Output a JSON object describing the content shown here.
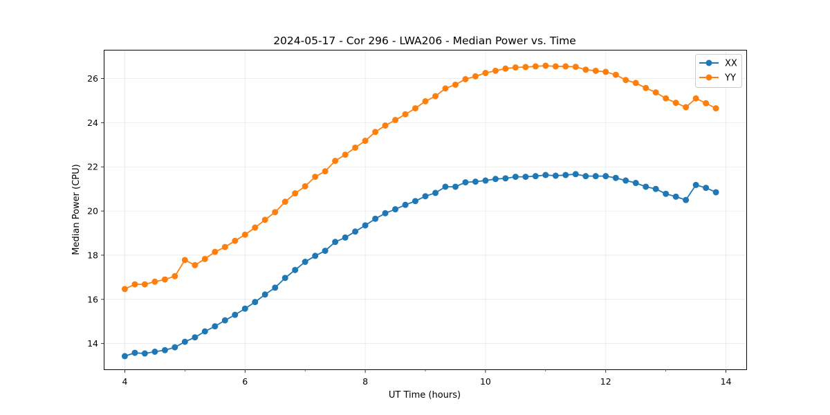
{
  "chart_data": {
    "type": "line",
    "title": "2024-05-17 - Cor 296 - LWA206 - Median Power vs. Time",
    "xlabel": "UT Time (hours)",
    "ylabel": "Median Power (CPU)",
    "xlim": [
      3.65,
      14.35
    ],
    "ylim": [
      12.8,
      27.3
    ],
    "xticks": [
      4,
      6,
      8,
      10,
      12,
      14
    ],
    "yticks": [
      14,
      16,
      18,
      20,
      22,
      24,
      26
    ],
    "grid": true,
    "legend_position": "top-right",
    "series": [
      {
        "name": "XX",
        "color": "#1f77b4",
        "x": [
          4.0,
          4.167,
          4.333,
          4.5,
          4.667,
          4.833,
          5.0,
          5.167,
          5.333,
          5.5,
          5.667,
          5.833,
          6.0,
          6.167,
          6.333,
          6.5,
          6.667,
          6.833,
          7.0,
          7.167,
          7.333,
          7.5,
          7.667,
          7.833,
          8.0,
          8.167,
          8.333,
          8.5,
          8.667,
          8.833,
          9.0,
          9.167,
          9.333,
          9.5,
          9.667,
          9.833,
          10.0,
          10.167,
          10.333,
          10.5,
          10.667,
          10.833,
          11.0,
          11.167,
          11.333,
          11.5,
          11.667,
          11.833,
          12.0,
          12.167,
          12.333,
          12.5,
          12.667,
          12.833,
          13.0,
          13.167,
          13.333,
          13.5,
          13.667,
          13.833
        ],
        "values": [
          13.43,
          13.58,
          13.55,
          13.63,
          13.7,
          13.83,
          14.08,
          14.28,
          14.55,
          14.78,
          15.05,
          15.3,
          15.58,
          15.88,
          16.22,
          16.53,
          16.97,
          17.33,
          17.7,
          17.97,
          18.2,
          18.6,
          18.8,
          19.07,
          19.35,
          19.65,
          19.9,
          20.08,
          20.28,
          20.45,
          20.67,
          20.82,
          21.1,
          21.1,
          21.3,
          21.33,
          21.38,
          21.45,
          21.48,
          21.55,
          21.55,
          21.58,
          21.63,
          21.6,
          21.63,
          21.67,
          21.58,
          21.58,
          21.58,
          21.5,
          21.38,
          21.27,
          21.1,
          21.0,
          20.78,
          20.65,
          20.5,
          21.18,
          21.05,
          20.85
        ]
      },
      {
        "name": "YY",
        "color": "#ff7f0e",
        "x": [
          4.0,
          4.167,
          4.333,
          4.5,
          4.667,
          4.833,
          5.0,
          5.167,
          5.333,
          5.5,
          5.667,
          5.833,
          6.0,
          6.167,
          6.333,
          6.5,
          6.667,
          6.833,
          7.0,
          7.167,
          7.333,
          7.5,
          7.667,
          7.833,
          8.0,
          8.167,
          8.333,
          8.5,
          8.667,
          8.833,
          9.0,
          9.167,
          9.333,
          9.5,
          9.667,
          9.833,
          10.0,
          10.167,
          10.333,
          10.5,
          10.667,
          10.833,
          11.0,
          11.167,
          11.333,
          11.5,
          11.667,
          11.833,
          12.0,
          12.167,
          12.333,
          12.5,
          12.667,
          12.833,
          13.0,
          13.167,
          13.333,
          13.5,
          13.667,
          13.833
        ],
        "values": [
          16.47,
          16.68,
          16.68,
          16.8,
          16.9,
          17.05,
          17.78,
          17.55,
          17.83,
          18.15,
          18.37,
          18.65,
          18.93,
          19.25,
          19.6,
          19.95,
          20.42,
          20.8,
          21.12,
          21.55,
          21.8,
          22.27,
          22.55,
          22.87,
          23.18,
          23.58,
          23.87,
          24.12,
          24.38,
          24.65,
          24.97,
          25.2,
          25.55,
          25.72,
          25.97,
          26.1,
          26.25,
          26.35,
          26.45,
          26.5,
          26.52,
          26.55,
          26.58,
          26.55,
          26.55,
          26.53,
          26.4,
          26.35,
          26.3,
          26.17,
          25.93,
          25.8,
          25.57,
          25.37,
          25.1,
          24.9,
          24.7,
          25.1,
          24.88,
          24.65
        ]
      }
    ]
  }
}
